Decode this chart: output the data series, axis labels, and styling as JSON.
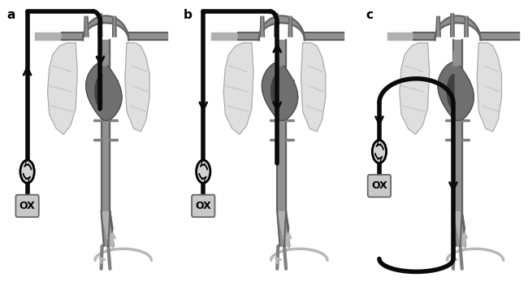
{
  "background_color": "#ffffff",
  "vessel_dark": "#606060",
  "vessel_mid": "#808080",
  "vessel_light": "#a0a0a0",
  "vessel_fill": "#909090",
  "vessel_fill2": "#b0b0b0",
  "lung_fill": "#d8d8d8",
  "lung_line": "#aaaaaa",
  "rib_color": "#cccccc",
  "heart_fill": "#707070",
  "heart_line": "#505050",
  "black_line": "#0a0a0a",
  "gray_circuit": "#b8b8b8",
  "pump_fill": "#d4d4d4",
  "ox_fill": "#c8c8c8",
  "thick_lw": 4.0,
  "panel_labels": [
    "a",
    "b",
    "c"
  ],
  "label_fs": 11,
  "ox_fs": 9,
  "figsize": [
    6.5,
    3.52
  ],
  "dpi": 100
}
